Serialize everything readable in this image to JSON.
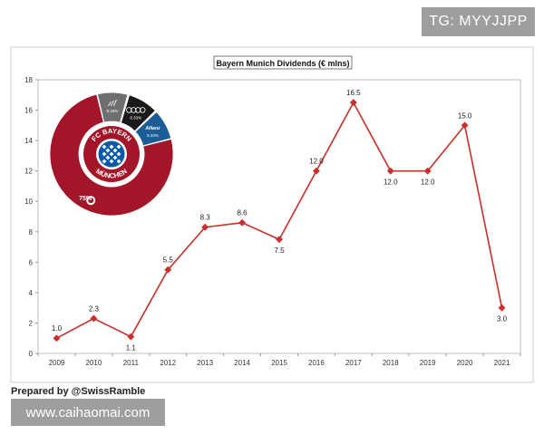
{
  "watermark_top": "TG: MYYJJPP",
  "watermark_bottom": "www.caihaomai.com",
  "credit": "Prepared by @SwissRamble",
  "colors": {
    "line": "#c9302c",
    "marker": "#c9302c",
    "donut_main": "#a3162a",
    "donut_grey": "#6d6e70",
    "donut_black": "#1a1a1a",
    "donut_blue": "#1b5e97"
  },
  "chart_data": {
    "type": "line",
    "title": "Bayern Munich Dividends (€ mlns)",
    "xlabel": "",
    "ylabel": "",
    "ylim": [
      0,
      18
    ],
    "yticks": [
      "0",
      "2",
      "4",
      "6",
      "8",
      "10",
      "12",
      "14",
      "16",
      "18"
    ],
    "categories": [
      "2009",
      "2010",
      "2011",
      "2012",
      "2013",
      "2014",
      "2015",
      "2016",
      "2017",
      "2018",
      "2019",
      "2020",
      "2021"
    ],
    "values": [
      1.0,
      2.3,
      1.1,
      5.5,
      8.3,
      8.6,
      7.5,
      12.0,
      16.5,
      12.0,
      12.0,
      15.0,
      3.0
    ],
    "labels": [
      "1.0",
      "2.3",
      "1.1",
      "5.5",
      "8.3",
      "8.6",
      "7.5",
      "12.0",
      "16.5",
      "12.0",
      "12.0",
      "15.0",
      "3.0"
    ],
    "label_position": [
      "above",
      "above",
      "below",
      "above",
      "above",
      "above",
      "below",
      "above",
      "above",
      "below",
      "below",
      "above",
      "below"
    ],
    "grid": false,
    "inset_donut": {
      "slices": [
        {
          "name": "FC Bayern Munchen",
          "value": 75,
          "label": "75%"
        },
        {
          "name": "adidas",
          "value": 8.33,
          "label": "8.33%"
        },
        {
          "name": "Audi",
          "value": 8.33,
          "label": "8.33%"
        },
        {
          "name": "Allianz",
          "value": 8.33,
          "label": "8.33%"
        }
      ],
      "center_text_top": "FC BAYERN",
      "center_text_bottom": "MÜNCHEN"
    }
  }
}
